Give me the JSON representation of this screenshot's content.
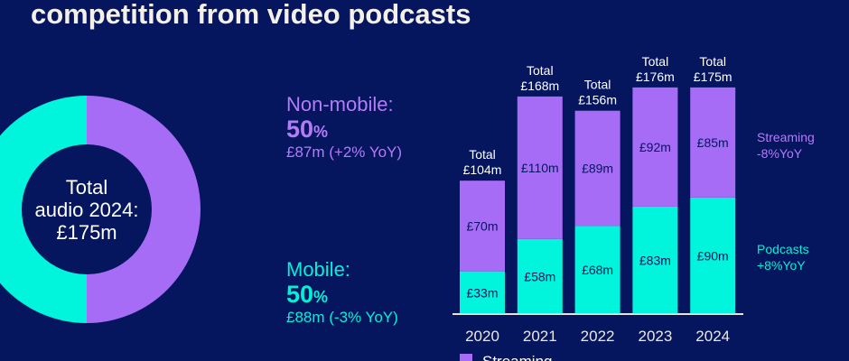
{
  "title": "competition from video podcasts",
  "donut": {
    "center_lines": [
      "Total",
      "audio 2024:",
      "£175m"
    ],
    "segments": [
      {
        "name": "Non-mobile",
        "label": "Non-mobile:",
        "pct": "50",
        "pct_sign": "%",
        "detail": "£87m (+2% YoY)",
        "value": 50,
        "color": "#a66cf5"
      },
      {
        "name": "Mobile",
        "label": "Mobile:",
        "pct": "50",
        "pct_sign": "%",
        "detail": "£88m (-3% YoY)",
        "value": 50,
        "color": "#00f5dc"
      }
    ]
  },
  "chart_data": {
    "type": "bar",
    "stacked": true,
    "categories": [
      "2020",
      "2021",
      "2022",
      "2023",
      "2024"
    ],
    "series": [
      {
        "name": "Podcasts",
        "values": [
          33,
          58,
          68,
          83,
          90
        ],
        "labels": [
          "£33m",
          "£58m",
          "£68m",
          "£83m",
          "£90m"
        ],
        "color": "#00f5dc"
      },
      {
        "name": "Streaming",
        "values": [
          70,
          110,
          89,
          92,
          85
        ],
        "labels": [
          "£70m",
          "£110m",
          "£89m",
          "£92m",
          "£85m"
        ],
        "color": "#a66cf5"
      }
    ],
    "totals": [
      "Total\n£104m",
      "Total\n£168m",
      "Total\n£156m",
      "Total\n£176m",
      "Total\n£175m"
    ],
    "annotations": {
      "streaming": [
        "Streaming",
        "-8%YoY"
      ],
      "podcasts": [
        "Podcasts",
        "+8%YoY"
      ]
    },
    "legend": [
      "Streaming"
    ],
    "ylim": [
      0,
      180
    ]
  }
}
